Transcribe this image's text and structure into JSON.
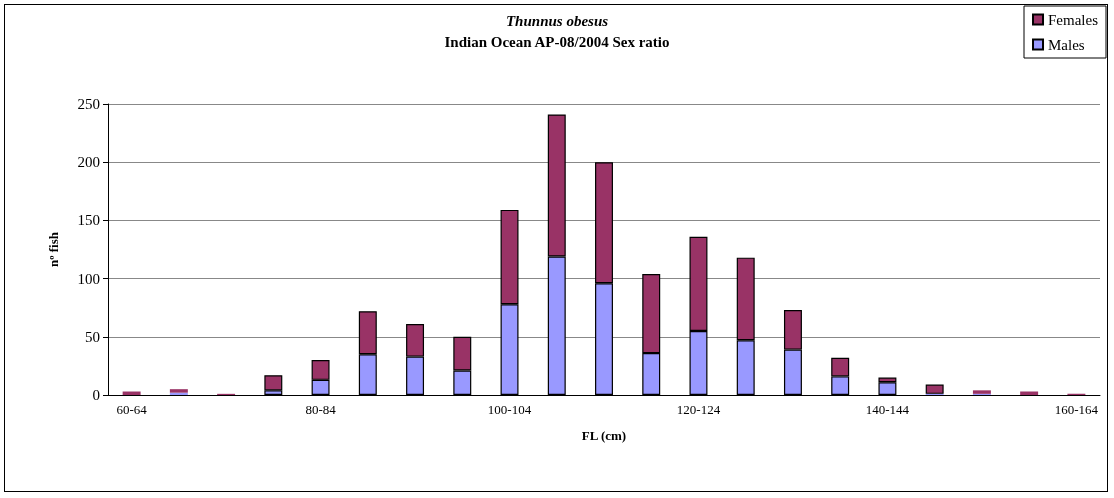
{
  "chart_data": {
    "type": "bar",
    "stacked": true,
    "title": "Thunnus obesus",
    "subtitle": "Indian Ocean AP-08/2004 Sex ratio",
    "xlabel": "FL (cm)",
    "ylabel": "nº fish",
    "categories": [
      "60-64",
      null,
      null,
      null,
      "80-84",
      null,
      null,
      null,
      "100-104",
      null,
      null,
      null,
      "120-124",
      null,
      null,
      null,
      "140-144",
      null,
      null,
      null,
      "160-164"
    ],
    "series": [
      {
        "name": "Males",
        "color": "#9999ff",
        "values": [
          0,
          2,
          0,
          4,
          13,
          35,
          33,
          21,
          78,
          119,
          96,
          36,
          55,
          47,
          39,
          16,
          11,
          1,
          1,
          0,
          0
        ]
      },
      {
        "name": "Females",
        "color": "#993366",
        "values": [
          3,
          3,
          1,
          13,
          17,
          37,
          28,
          29,
          81,
          122,
          104,
          68,
          81,
          71,
          34,
          16,
          4,
          8,
          3,
          3,
          1
        ]
      }
    ],
    "ylim": [
      0,
      250
    ],
    "yticks": [
      0,
      50,
      100,
      150,
      200,
      250
    ],
    "grid": "y",
    "legend": "top right"
  }
}
